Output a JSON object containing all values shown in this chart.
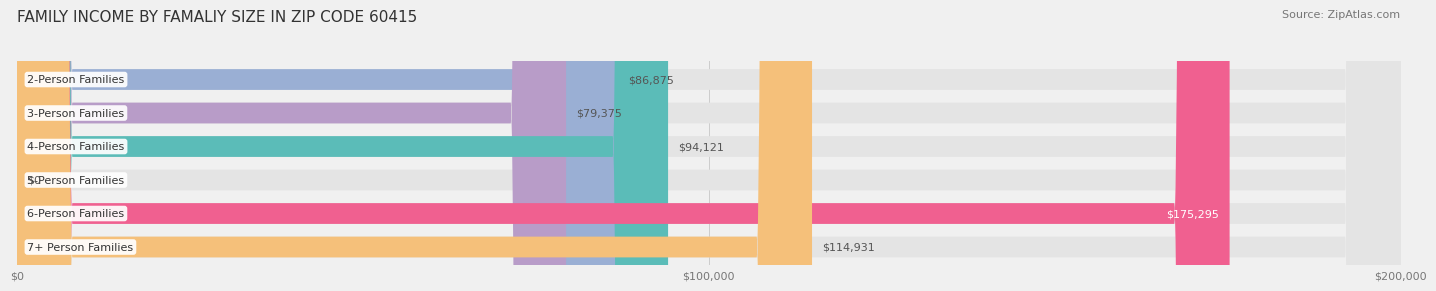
{
  "title": "FAMILY INCOME BY FAMALIY SIZE IN ZIP CODE 60415",
  "source": "Source: ZipAtlas.com",
  "categories": [
    "2-Person Families",
    "3-Person Families",
    "4-Person Families",
    "5-Person Families",
    "6-Person Families",
    "7+ Person Families"
  ],
  "values": [
    86875,
    79375,
    94121,
    0,
    175295,
    114931
  ],
  "bar_colors": [
    "#9aafd4",
    "#b89cc8",
    "#5bbcb8",
    "#b0b8e8",
    "#f06090",
    "#f5c07a"
  ],
  "bar_labels": [
    "$86,875",
    "$79,375",
    "$94,121",
    "$0",
    "$175,295",
    "$114,931"
  ],
  "label_inside": [
    false,
    false,
    false,
    false,
    true,
    false
  ],
  "xlim": [
    0,
    200000
  ],
  "xtick_labels": [
    "$0",
    "$100,000",
    "$200,000"
  ],
  "background_color": "#f0f0f0",
  "bar_background_color": "#e4e4e4",
  "title_fontsize": 11,
  "source_fontsize": 8,
  "label_fontsize": 8,
  "tick_fontsize": 8,
  "bar_height": 0.62
}
